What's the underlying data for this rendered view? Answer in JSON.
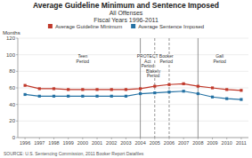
{
  "chart_data": {
    "type": "line",
    "title": "Average Guideline Minimum and Sentence Imposed",
    "subtitle": [
      "All Offenses",
      "Fiscal Years 1996-2011"
    ],
    "y_label": "Months",
    "source": "SOURCE: U.S. Sentencing Commission, 2011 Booker Report Datafiles",
    "x": [
      1996,
      1997,
      1998,
      1999,
      2000,
      2001,
      2002,
      2003,
      2004,
      2005,
      2006,
      2007,
      2008,
      2009,
      2010,
      2011
    ],
    "series": [
      {
        "name": "Average Guideline Minimum",
        "color": "#c0392b",
        "marker": "square",
        "values": [
          63,
          59,
          59,
          58,
          58,
          58,
          58,
          58,
          59,
          62,
          64,
          65,
          62,
          60,
          58,
          57
        ]
      },
      {
        "name": "Average Sentence Imposed",
        "color": "#2471a3",
        "marker": "square",
        "values": [
          52,
          50,
          50,
          50,
          50,
          50,
          50,
          50,
          53,
          54,
          55,
          56,
          53,
          49,
          47,
          46
        ]
      }
    ],
    "xlim": [
      1995.5,
      2011.5
    ],
    "xticks": [
      1996,
      1997,
      1998,
      1999,
      2000,
      2001,
      2002,
      2003,
      2004,
      2005,
      2006,
      2007,
      2008,
      2009,
      2010,
      2011
    ],
    "ylim": [
      0,
      120
    ],
    "yticks": [
      0,
      20,
      40,
      60,
      80,
      100,
      120
    ],
    "vlines": [
      {
        "x": 2004,
        "line_style": "solid"
      },
      {
        "x": 2008,
        "line_style": "solid"
      },
      {
        "x": 2005,
        "line_style": "dashed"
      },
      {
        "x": 2006,
        "line_style": "dashed"
      }
    ],
    "annotations": [
      {
        "x": 2000.0,
        "y": 100,
        "lines": [
          "Teen",
          "Period"
        ]
      },
      {
        "x": 2004.5,
        "y": 100,
        "lines": [
          "PROTECT",
          "Act",
          "Period"
        ]
      },
      {
        "x": 2004.9,
        "y": 82,
        "lines": [
          "Blakely",
          "Period"
        ]
      },
      {
        "x": 2005.8,
        "y": 100,
        "lines": [
          "Booker",
          "Period"
        ]
      },
      {
        "x": 2009.5,
        "y": 100,
        "lines": [
          "Gall",
          "Period"
        ]
      }
    ],
    "grid": true,
    "legend": "top"
  }
}
